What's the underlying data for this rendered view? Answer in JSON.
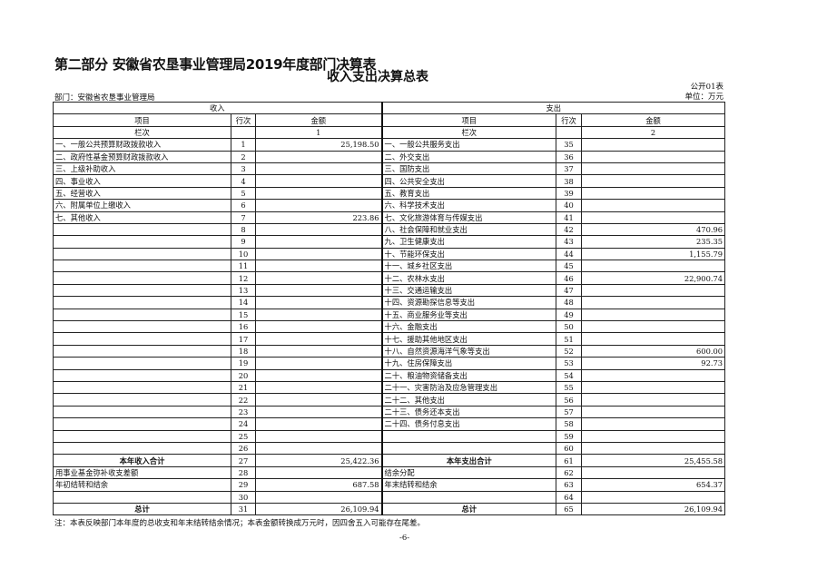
{
  "title": "第二部分  安徽省农垦事业管理局2019年度部门决算表",
  "subtitle": "收入支出决算总表",
  "table_code": "公开01表",
  "department": "部门：安徽省农垦事业管理局",
  "unit": "单位：万元",
  "headers": {
    "income": "收入",
    "expense": "支出",
    "item": "项目",
    "line_no": "行次",
    "amount": "金额",
    "column_no": "栏次",
    "income_col": "1",
    "expense_col": "2"
  },
  "rows": [
    {
      "l_item": "一、一般公共预算财政拨款收入",
      "l_no": "1",
      "l_amt": "25,198.50",
      "r_item": "一、一般公共服务支出",
      "r_no": "35",
      "r_amt": ""
    },
    {
      "l_item": "二、政府性基金预算财政拨款收入",
      "l_no": "2",
      "l_amt": "",
      "r_item": "二、外交支出",
      "r_no": "36",
      "r_amt": ""
    },
    {
      "l_item": "三、上级补助收入",
      "l_no": "3",
      "l_amt": "",
      "r_item": "三、国防支出",
      "r_no": "37",
      "r_amt": ""
    },
    {
      "l_item": "四、事业收入",
      "l_no": "4",
      "l_amt": "",
      "r_item": "四、公共安全支出",
      "r_no": "38",
      "r_amt": ""
    },
    {
      "l_item": "五、经营收入",
      "l_no": "5",
      "l_amt": "",
      "r_item": "五、教育支出",
      "r_no": "39",
      "r_amt": ""
    },
    {
      "l_item": "六、附属单位上缴收入",
      "l_no": "6",
      "l_amt": "",
      "r_item": "六、科学技术支出",
      "r_no": "40",
      "r_amt": ""
    },
    {
      "l_item": "七、其他收入",
      "l_no": "7",
      "l_amt": "223.86",
      "r_item": "七、文化旅游体育与传媒支出",
      "r_no": "41",
      "r_amt": ""
    },
    {
      "l_item": "",
      "l_no": "8",
      "l_amt": "",
      "r_item": "八、社会保障和就业支出",
      "r_no": "42",
      "r_amt": "470.96"
    },
    {
      "l_item": "",
      "l_no": "9",
      "l_amt": "",
      "r_item": "九、卫生健康支出",
      "r_no": "43",
      "r_amt": "235.35"
    },
    {
      "l_item": "",
      "l_no": "10",
      "l_amt": "",
      "r_item": "十、节能环保支出",
      "r_no": "44",
      "r_amt": "1,155.79"
    },
    {
      "l_item": "",
      "l_no": "11",
      "l_amt": "",
      "r_item": "十一、城乡社区支出",
      "r_no": "45",
      "r_amt": ""
    },
    {
      "l_item": "",
      "l_no": "12",
      "l_amt": "",
      "r_item": "十二、农林水支出",
      "r_no": "46",
      "r_amt": "22,900.74"
    },
    {
      "l_item": "",
      "l_no": "13",
      "l_amt": "",
      "r_item": "十三、交通运输支出",
      "r_no": "47",
      "r_amt": ""
    },
    {
      "l_item": "",
      "l_no": "14",
      "l_amt": "",
      "r_item": "十四、资源勘探信息等支出",
      "r_no": "48",
      "r_amt": ""
    },
    {
      "l_item": "",
      "l_no": "15",
      "l_amt": "",
      "r_item": "十五、商业服务业等支出",
      "r_no": "49",
      "r_amt": ""
    },
    {
      "l_item": "",
      "l_no": "16",
      "l_amt": "",
      "r_item": "十六、金融支出",
      "r_no": "50",
      "r_amt": ""
    },
    {
      "l_item": "",
      "l_no": "17",
      "l_amt": "",
      "r_item": "十七、援助其他地区支出",
      "r_no": "51",
      "r_amt": ""
    },
    {
      "l_item": "",
      "l_no": "18",
      "l_amt": "",
      "r_item": "十八、自然资源海洋气象等支出",
      "r_no": "52",
      "r_amt": "600.00"
    },
    {
      "l_item": "",
      "l_no": "19",
      "l_amt": "",
      "r_item": "十九、住房保障支出",
      "r_no": "53",
      "r_amt": "92.73"
    },
    {
      "l_item": "",
      "l_no": "20",
      "l_amt": "",
      "r_item": "二十、粮油物资储备支出",
      "r_no": "54",
      "r_amt": ""
    },
    {
      "l_item": "",
      "l_no": "21",
      "l_amt": "",
      "r_item": "二十一、灾害防治及应急管理支出",
      "r_no": "55",
      "r_amt": ""
    },
    {
      "l_item": "",
      "l_no": "22",
      "l_amt": "",
      "r_item": "二十二、其他支出",
      "r_no": "56",
      "r_amt": ""
    },
    {
      "l_item": "",
      "l_no": "23",
      "l_amt": "",
      "r_item": "二十三、债务还本支出",
      "r_no": "57",
      "r_amt": ""
    },
    {
      "l_item": "",
      "l_no": "24",
      "l_amt": "",
      "r_item": "二十四、债务付息支出",
      "r_no": "58",
      "r_amt": ""
    },
    {
      "l_item": "",
      "l_no": "25",
      "l_amt": "",
      "r_item": "",
      "r_no": "59",
      "r_amt": ""
    },
    {
      "l_item": "",
      "l_no": "26",
      "l_amt": "",
      "r_item": "",
      "r_no": "60",
      "r_amt": ""
    },
    {
      "l_item": "本年收入合计",
      "l_no": "27",
      "l_amt": "25,422.36",
      "r_item": "本年支出合计",
      "r_no": "61",
      "r_amt": "25,455.58",
      "bold": true
    },
    {
      "l_item": "用事业基金弥补收支差额",
      "l_no": "28",
      "l_amt": "",
      "r_item": "结余分配",
      "r_no": "62",
      "r_amt": ""
    },
    {
      "l_item": "年初结转和结余",
      "l_no": "29",
      "l_amt": "687.58",
      "r_item": "年末结转和结余",
      "r_no": "63",
      "r_amt": "654.37"
    },
    {
      "l_item": "",
      "l_no": "30",
      "l_amt": "",
      "r_item": "",
      "r_no": "64",
      "r_amt": ""
    },
    {
      "l_item": "总计",
      "l_no": "31",
      "l_amt": "26,109.94",
      "r_item": "总计",
      "r_no": "65",
      "r_amt": "26,109.94",
      "bold": true
    }
  ],
  "note": "注：本表反映部门本年度的总收支和年末结转结余情况；本表金额转换成万元时，因四舍五入可能存在尾差。",
  "page_number": "-6-"
}
